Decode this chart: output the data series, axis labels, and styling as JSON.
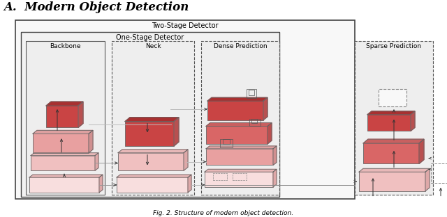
{
  "title": "A.  Modern Object Detection",
  "caption": "Fig. 2. Structure of modern object detection.",
  "bg_color": "#ffffff",
  "two_stage_label": "Two-Stage Detector",
  "one_stage_label": "One-Stage Detector",
  "backbone_label": "Backbone",
  "neck_label": "Neck",
  "dense_label": "Dense Prediction",
  "sparse_label": "Sparse Prediction",
  "colors": {
    "dark_red": "#c94444",
    "mid_red": "#d96666",
    "light_red": "#e8a0a0",
    "pale_red": "#f0c0c0",
    "very_pale": "#f8dede",
    "darkest_red": "#b03030",
    "top_face_dark": "#a83030",
    "top_face_mid": "#c86060",
    "top_face_light": "#dda0a0",
    "top_face_pale": "#e8b8b8",
    "right_face_dark": "#9a2828",
    "right_face_mid": "#b85050",
    "right_face_light": "#d09090",
    "right_face_pale": "#dea8a8"
  }
}
